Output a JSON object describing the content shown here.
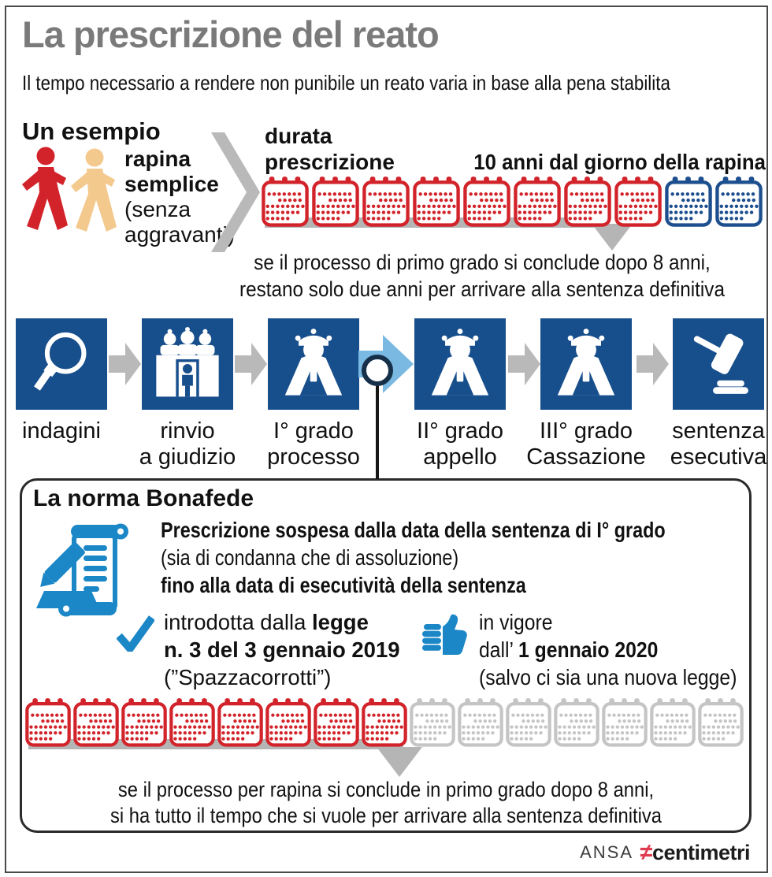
{
  "header": {
    "title": "La prescrizione del reato",
    "subtitle": "Il tempo necessario a rendere non punibile un reato varia in base alla pena stabilita"
  },
  "example": {
    "heading": "Un esempio",
    "crime_lines": [
      "rapina",
      "semplice",
      "(senza",
      "aggravanti)"
    ],
    "duration_label_lines": [
      "durata",
      "prescrizione"
    ],
    "duration_value": "10 anni dal giorno della rapina",
    "calendars": {
      "red": 8,
      "blue": 2
    },
    "note_lines": [
      "se il processo di primo grado si conclude dopo 8 anni,",
      "restano solo due anni per arrivare alla sentenza definitiva"
    ]
  },
  "process": {
    "steps": [
      {
        "line1": "indagini",
        "line2": "",
        "icon": "magnifier-icon"
      },
      {
        "line1": "rinvio",
        "line2": "a giudizio",
        "icon": "court-icon"
      },
      {
        "line1": "I° grado",
        "line2": "processo",
        "icon": "judge-icon"
      },
      {
        "line1": "II° grado",
        "line2": "appello",
        "icon": "judge-icon"
      },
      {
        "line1": "III° grado",
        "line2": "Cassazione",
        "icon": "judge-icon"
      },
      {
        "line1": "sentenza",
        "line2": "esecutiva",
        "icon": "gavel-icon"
      }
    ]
  },
  "norma": {
    "heading": "La norma Bonafede",
    "rule_lines": [
      "Prescrizione sospesa dalla data della sentenza di I° grado",
      "(sia di condanna che di assoluzione)",
      "fino alla data di esecutività della sentenza"
    ],
    "law": {
      "intro": "introdotta dalla ",
      "bold1": "legge",
      "bold2": "n. 3 del 3 gennaio 2019",
      "note": "(”Spazzacorrotti”)"
    },
    "vigore": {
      "line1": "in vigore",
      "prefix": "dall’ ",
      "bold": "1 gennaio 2020",
      "note": "(salvo ci sia una nuova legge)"
    },
    "calendars": {
      "red": 8,
      "gray": 7
    },
    "note_lines": [
      "se il processo per rapina si conclude in primo grado dopo 8 anni,",
      "si ha tutto il tempo che si vuole per arrivare alla sentenza definitiva"
    ]
  },
  "footer": {
    "agency": "ANSA",
    "brand_symbol": "≠",
    "brand_name": "centimetri"
  },
  "colors": {
    "red": "#d2232a",
    "navy": "#174e8c",
    "calendar_blue": "#1d4f8e",
    "calendar_gray": "#c5c5c5",
    "light_blue": "#79b9e2",
    "bright_blue": "#1b87c7",
    "arrow_gray": "#b9b9b9",
    "tan": "#f4c98e",
    "title_gray": "#7a7a7a"
  }
}
